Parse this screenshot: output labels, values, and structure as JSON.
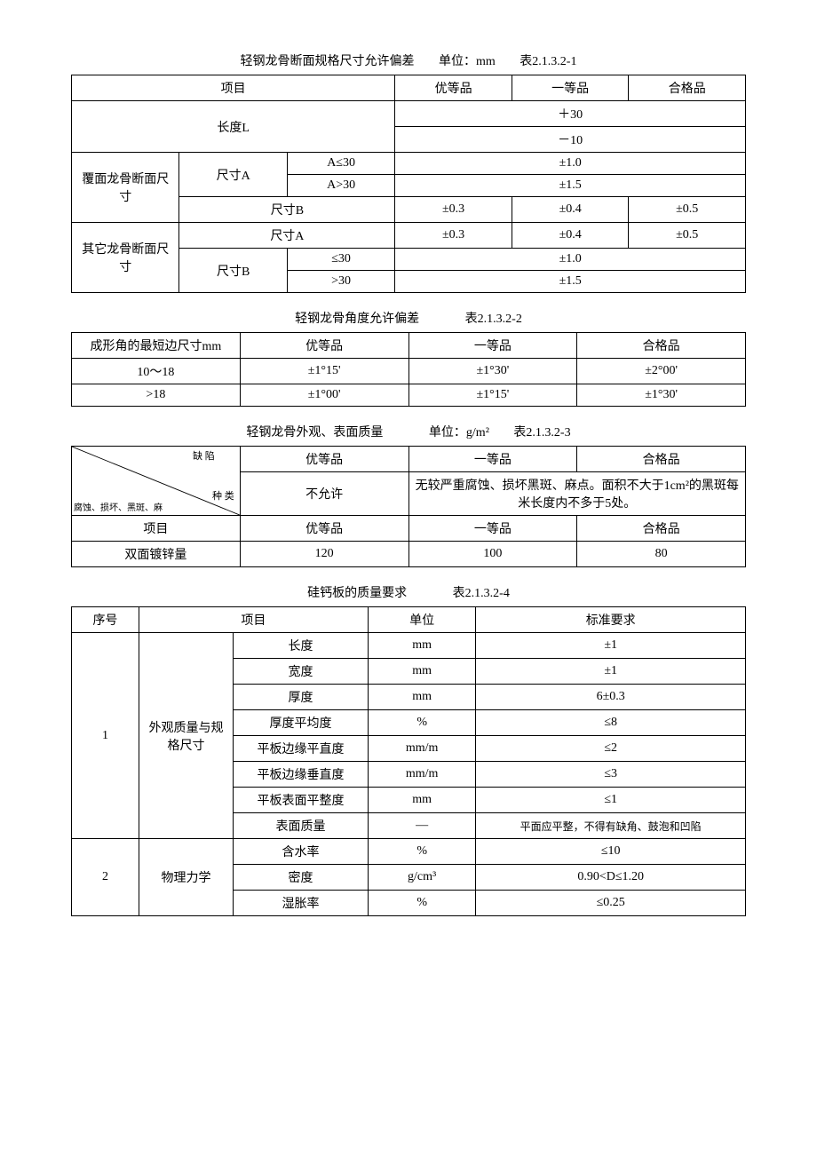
{
  "t1": {
    "title_main": "轻钢龙骨断面规格尺寸允许偏差",
    "title_unit": "单位：mm",
    "title_ref": "表2.1.3.2-1",
    "h_item": "项目",
    "h_top": "优等品",
    "h_first": "一等品",
    "h_pass": "合格品",
    "length_label": "长度L",
    "length_plus": "＋30",
    "length_minus": "－10",
    "r1_g": "覆面龙骨断面尺寸",
    "r1_a": "尺寸A",
    "r1_a1": "A≤30",
    "r1_a1_v": "±1.0",
    "r1_a2": "A>30",
    "r1_a2_v": "±1.5",
    "r1_b": "尺寸B",
    "r1_b_top": "±0.3",
    "r1_b_first": "±0.4",
    "r1_b_pass": "±0.5",
    "r2_g": "其它龙骨断面尺寸",
    "r2_a": "尺寸A",
    "r2_a_top": "±0.3",
    "r2_a_first": "±0.4",
    "r2_a_pass": "±0.5",
    "r2_b": "尺寸B",
    "r2_b1": "≤30",
    "r2_b1_v": "±1.0",
    "r2_b2": ">30",
    "r2_b2_v": "±1.5"
  },
  "t2": {
    "title_main": "轻钢龙骨角度允许偏差",
    "title_ref": "表2.1.3.2-2",
    "h1": "成形角的最短边尺寸mm",
    "h2": "优等品",
    "h3": "一等品",
    "h4": "合格品",
    "r1c1": "10～18",
    "r1c2": "±1°15'",
    "r1c3": "±1°30'",
    "r1c4": "±2°00'",
    "r2c1": ">18",
    "r2c2": "±1°00'",
    "r2c3": "±1°15'",
    "r2c4": "±1°30'"
  },
  "t3": {
    "title_main": "轻钢龙骨外观、表面质量",
    "title_unit": "单位：g/m²",
    "title_ref": "表2.1.3.2-3",
    "diag_defect": "缺  陷",
    "diag_kind": "种  类",
    "diag_items": "腐蚀、损坏、黑斑、麻",
    "h_top": "优等品",
    "h_first": "一等品",
    "h_pass": "合格品",
    "not_allow": "不允许",
    "desc": "无较严重腐蚀、损坏黑斑、麻点。面积不大于1cm²的黑斑每米长度内不多于5处。",
    "item": "项目",
    "zinc": "双面镀锌量",
    "z_top": "120",
    "z_first": "100",
    "z_pass": "80"
  },
  "t4": {
    "title_main": "硅钙板的质量要求",
    "title_ref": "表2.1.3.2-4",
    "h_no": "序号",
    "h_item": "项目",
    "h_unit": "单位",
    "h_req": "标准要求",
    "g1_no": "1",
    "g1_name": "外观质量与规格尺寸",
    "g1": [
      {
        "item": "长度",
        "unit": "mm",
        "req": "±1"
      },
      {
        "item": "宽度",
        "unit": "mm",
        "req": "±1"
      },
      {
        "item": "厚度",
        "unit": "mm",
        "req": "6±0.3"
      },
      {
        "item": "厚度平均度",
        "unit": "%",
        "req": "≤8"
      },
      {
        "item": "平板边缘平直度",
        "unit": "mm/m",
        "req": "≤2"
      },
      {
        "item": "平板边缘垂直度",
        "unit": "mm/m",
        "req": "≤3"
      },
      {
        "item": "平板表面平整度",
        "unit": "mm",
        "req": "≤1"
      },
      {
        "item": "表面质量",
        "unit": "—",
        "req": "平面应平整，不得有缺角、鼓泡和凹陷"
      }
    ],
    "g2_no": "2",
    "g2_name": "物理力学",
    "g2": [
      {
        "item": "含水率",
        "unit": "%",
        "req": "≤10"
      },
      {
        "item": "密度",
        "unit": "g/cm³",
        "req": "0.90<D≤1.20"
      },
      {
        "item": "湿胀率",
        "unit": "%",
        "req": "≤0.25"
      }
    ]
  }
}
